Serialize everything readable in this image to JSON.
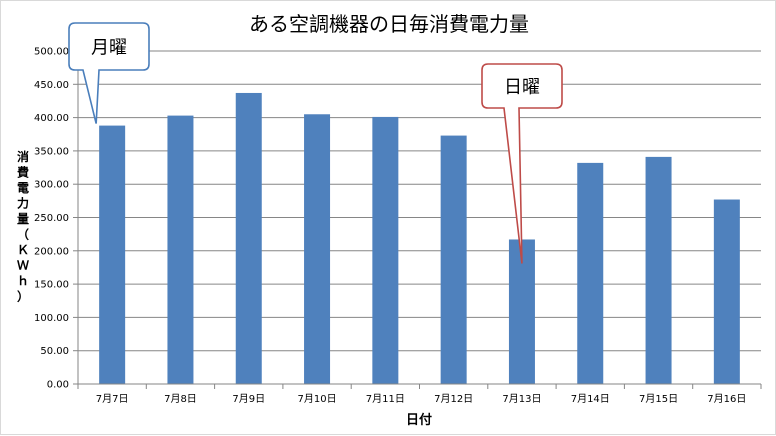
{
  "chart_data": {
    "type": "bar",
    "title": "ある空調機器の日毎消費電力量",
    "xlabel": "日付",
    "ylabel": "消費電力量（ＫＷｈ）",
    "categories": [
      "7月7日",
      "7月8日",
      "7月9日",
      "7月10日",
      "7月11日",
      "7月12日",
      "7月13日",
      "7月14日",
      "7月15日",
      "7月16日"
    ],
    "values": [
      388,
      403,
      437,
      405,
      401,
      373,
      217,
      332,
      341,
      277
    ],
    "ylim": [
      0,
      500
    ],
    "ytick_step": 50,
    "ytick_labels": [
      "0.00",
      "50.00",
      "100.00",
      "150.00",
      "200.00",
      "250.00",
      "300.00",
      "350.00",
      "400.00",
      "450.00",
      "500.00"
    ],
    "grid": true,
    "legend": "none",
    "bar_color": "#4f81bd",
    "gridline_color": "#868686",
    "annotations": [
      {
        "text": "月曜",
        "category_index": 0,
        "border_color": "#4a7ebb"
      },
      {
        "text": "日曜",
        "category_index": 6,
        "border_color": "#be4b48"
      }
    ]
  }
}
